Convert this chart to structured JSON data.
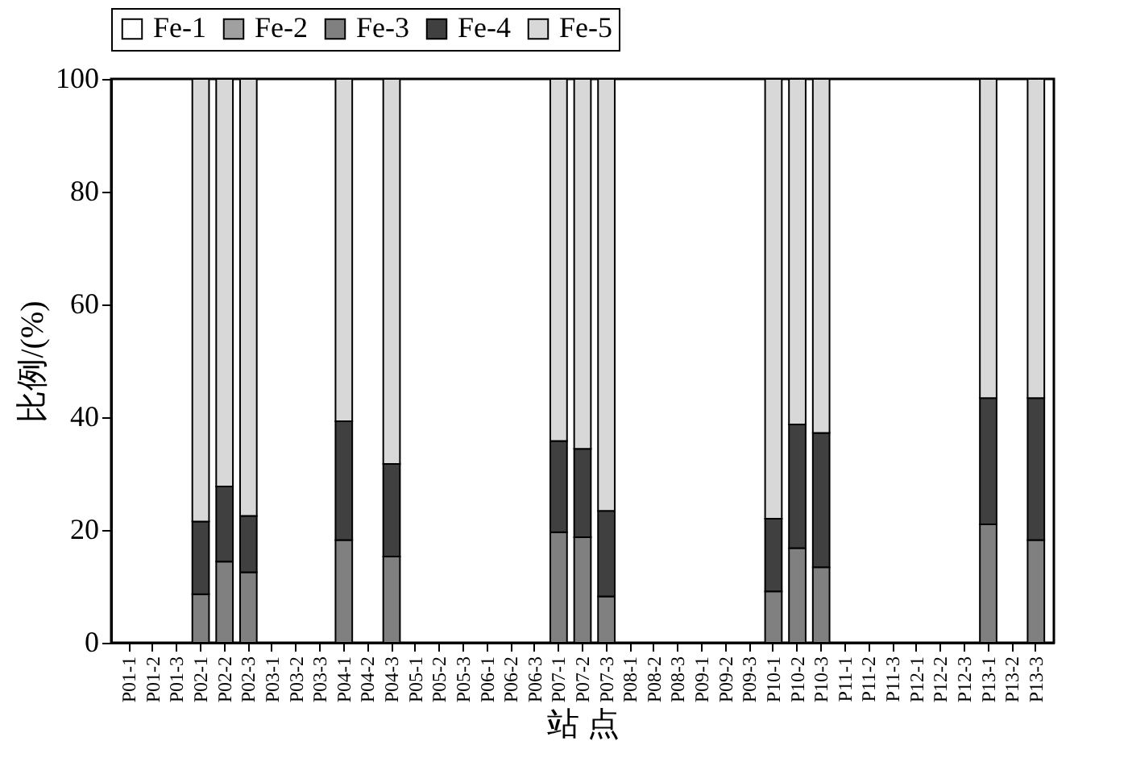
{
  "chart_data": {
    "type": "bar",
    "stacked": true,
    "xlabel": "站 点",
    "ylabel": "比例/(%)",
    "categories": [
      "P01-1",
      "P01-2",
      "P01-3",
      "P02-1",
      "P02-2",
      "P02-3",
      "P03-1",
      "P03-2",
      "P03-3",
      "P04-1",
      "P04-2",
      "P04-3",
      "P05-1",
      "P05-2",
      "P05-3",
      "P06-1",
      "P06-2",
      "P06-3",
      "P07-1",
      "P07-2",
      "P07-3",
      "P08-1",
      "P08-2",
      "P08-3",
      "P09-1",
      "P09-2",
      "P09-3",
      "P10-1",
      "P10-2",
      "P10-3",
      "P11-1",
      "P11-2",
      "P11-3",
      "P12-1",
      "P12-2",
      "P12-3",
      "P13-1",
      "P13-2",
      "P13-3"
    ],
    "series": [
      {
        "name": "Fe-1",
        "color": "#ffffff",
        "values": [
          null,
          null,
          null,
          0,
          0,
          0,
          null,
          null,
          null,
          0,
          null,
          0,
          null,
          null,
          null,
          null,
          null,
          null,
          0,
          0,
          0,
          null,
          null,
          null,
          null,
          null,
          null,
          0,
          0,
          0,
          null,
          null,
          null,
          null,
          null,
          null,
          0,
          null,
          0
        ]
      },
      {
        "name": "Fe-2",
        "color": "#a0a0a0",
        "values": [
          null,
          null,
          null,
          0,
          0,
          0,
          null,
          null,
          null,
          0,
          null,
          0,
          null,
          null,
          null,
          null,
          null,
          null,
          0,
          0,
          0,
          null,
          null,
          null,
          null,
          null,
          null,
          0,
          0,
          0,
          null,
          null,
          null,
          null,
          null,
          null,
          0,
          null,
          0
        ]
      },
      {
        "name": "Fe-3",
        "color": "#808080",
        "values": [
          null,
          null,
          null,
          8.6,
          14.4,
          12.5,
          null,
          null,
          null,
          18.2,
          null,
          15.3,
          null,
          null,
          null,
          null,
          null,
          null,
          19.6,
          18.7,
          8.2,
          null,
          null,
          null,
          null,
          null,
          null,
          9.1,
          16.8,
          13.4,
          null,
          null,
          null,
          null,
          null,
          null,
          21,
          null,
          18.2
        ]
      },
      {
        "name": "Fe-4",
        "color": "#404040",
        "values": [
          null,
          null,
          null,
          12.9,
          13.3,
          10,
          null,
          null,
          null,
          21.1,
          null,
          16.4,
          null,
          null,
          null,
          null,
          null,
          null,
          16.2,
          15.7,
          15.2,
          null,
          null,
          null,
          null,
          null,
          null,
          12.9,
          21.9,
          23.8,
          null,
          null,
          null,
          null,
          null,
          null,
          22.4,
          null,
          25.2
        ]
      },
      {
        "name": "Fe-5",
        "color": "#d8d8d8",
        "values": [
          null,
          null,
          null,
          78.5,
          72.3,
          77.5,
          null,
          null,
          null,
          60.7,
          null,
          68.3,
          null,
          null,
          null,
          null,
          null,
          null,
          64.2,
          65.6,
          76.6,
          null,
          null,
          null,
          null,
          null,
          null,
          78,
          61.3,
          62.8,
          null,
          null,
          null,
          null,
          null,
          null,
          56.6,
          null,
          56.6
        ]
      }
    ],
    "ylim": [
      0,
      100
    ],
    "yticks": [
      0,
      20,
      40,
      60,
      80,
      100
    ],
    "legend": "top"
  }
}
